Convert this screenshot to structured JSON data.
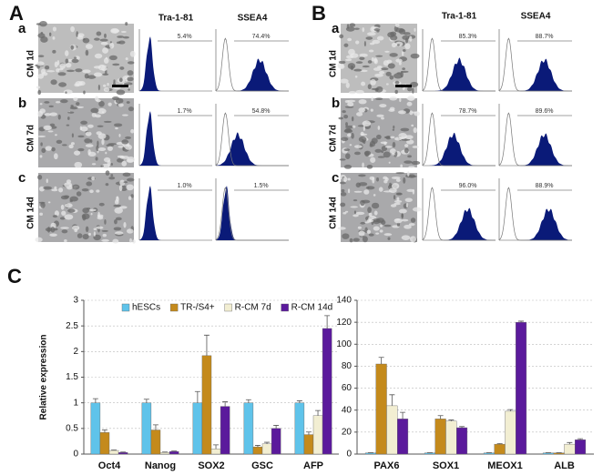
{
  "panels": [
    {
      "label": "A",
      "columns": [
        "Tra-1-81",
        "SSEA4"
      ],
      "rows": [
        {
          "letter": "a",
          "condition": "CM 1d",
          "percentages": [
            "5.4%",
            "74.4%"
          ]
        },
        {
          "letter": "b",
          "condition": "CM 7d",
          "percentages": [
            "1.7%",
            "54.8%"
          ]
        },
        {
          "letter": "c",
          "condition": "CM 14d",
          "percentages": [
            "1.0%",
            "1.5%"
          ]
        }
      ]
    },
    {
      "label": "B",
      "columns": [
        "Tra-1-81",
        "SSEA4"
      ],
      "rows": [
        {
          "letter": "a",
          "condition": "CM 1d",
          "percentages": [
            "85.3%",
            "88.7%"
          ]
        },
        {
          "letter": "b",
          "condition": "CM 7d",
          "percentages": [
            "78.7%",
            "89.6%"
          ]
        },
        {
          "letter": "c",
          "condition": "CM 14d",
          "percentages": [
            "96.0%",
            "88.9%"
          ]
        }
      ]
    }
  ],
  "chart_panel_label": "C",
  "chart_data": [
    {
      "type": "bar",
      "y_label": "Relative expression",
      "categories": [
        "Oct4",
        "Nanog",
        "SOX2",
        "GSC",
        "AFP"
      ],
      "ylim": [
        0,
        3
      ],
      "yticks": [
        0,
        0.5,
        1,
        1.5,
        2,
        2.5,
        3
      ],
      "grid": true,
      "legend": "top",
      "series": [
        {
          "name": "hESCs",
          "color": "#5fc3ea",
          "values": [
            1,
            1,
            1,
            1,
            1
          ],
          "errors": [
            0.08,
            0.07,
            0.22,
            0.06,
            0.04
          ]
        },
        {
          "name": "TR-/S4+",
          "color": "#c48a1c",
          "values": [
            0.42,
            0.47,
            1.92,
            0.14,
            0.38
          ],
          "errors": [
            0.05,
            0.1,
            0.4,
            0.03,
            0.05
          ]
        },
        {
          "name": "R-CM 7d",
          "color": "#f2eed2",
          "values": [
            0.07,
            0.03,
            0.1,
            0.2,
            0.75
          ],
          "errors": [
            0.01,
            0.01,
            0.08,
            0.03,
            0.1
          ]
        },
        {
          "name": "R-CM 14d",
          "color": "#5b1a9c",
          "values": [
            0.03,
            0.05,
            0.93,
            0.5,
            2.45
          ],
          "errors": [
            0.01,
            0.01,
            0.09,
            0.06,
            0.25
          ]
        }
      ]
    },
    {
      "type": "bar",
      "categories": [
        "PAX6",
        "SOX1",
        "MEOX1",
        "ALB"
      ],
      "ylim": [
        0,
        140
      ],
      "yticks": [
        0,
        20,
        40,
        60,
        80,
        100,
        120,
        140
      ],
      "grid": true,
      "series": [
        {
          "color": "#5fc3ea",
          "values": [
            1,
            1,
            1,
            1
          ],
          "errors": [
            0.2,
            0.2,
            0.2,
            0.2
          ]
        },
        {
          "color": "#c48a1c",
          "values": [
            82,
            32,
            9,
            1
          ],
          "errors": [
            6,
            3,
            0.5,
            0.2
          ]
        },
        {
          "color": "#f2eed2",
          "values": [
            44,
            30,
            39,
            9
          ],
          "errors": [
            10,
            1,
            1.5,
            1.5
          ]
        },
        {
          "color": "#5b1a9c",
          "values": [
            32,
            24,
            120,
            13
          ],
          "errors": [
            6,
            1,
            1,
            1
          ]
        }
      ]
    }
  ]
}
